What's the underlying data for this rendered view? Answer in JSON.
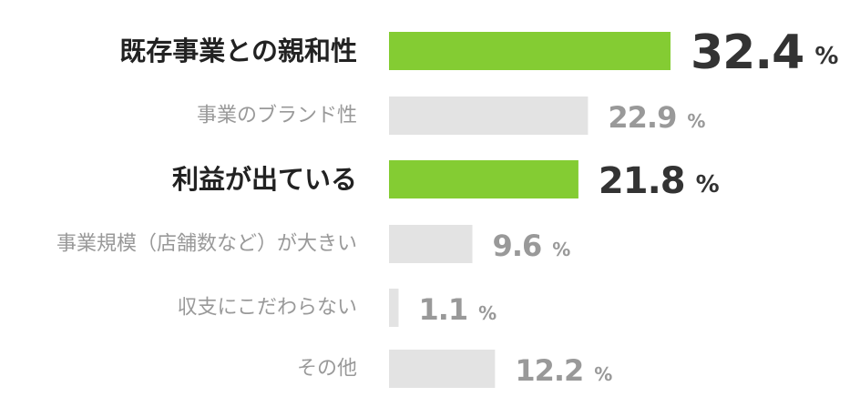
{
  "chart_data": {
    "type": "bar",
    "orientation": "horizontal",
    "categories": [
      "既存事業との親和性",
      "事業のブランド性",
      "利益が出ている",
      "事業規模（店舗数など）が大きい",
      "収支にこだわらない",
      "その他"
    ],
    "values": [
      32.4,
      22.9,
      21.8,
      9.6,
      1.1,
      12.2
    ],
    "unit": "%",
    "highlight": [
      true,
      false,
      true,
      false,
      false,
      false
    ],
    "color": "#84cc33",
    "base_color": "#e3e3e3"
  }
}
